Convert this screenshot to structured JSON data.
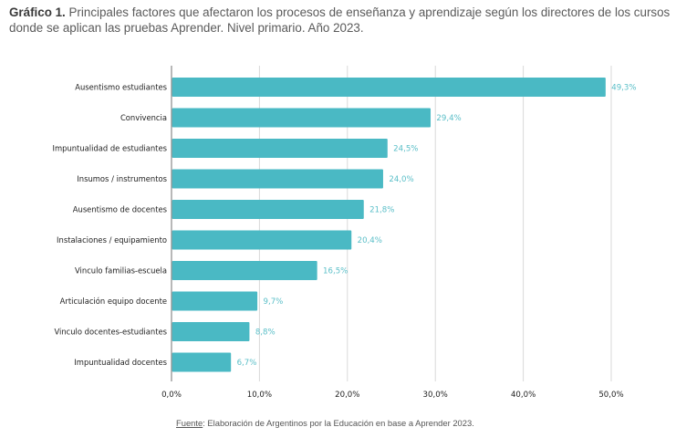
{
  "title": {
    "prefix": "Gráfico 1.",
    "text": " Principales factores que afectaron los procesos de enseñanza y aprendizaje  según los directores de los cursos donde se aplican las pruebas Aprender. Nivel primario. Año 2023."
  },
  "source": {
    "label": "Fuente",
    "text": ": Elaboración de Argentinos por la Educación en base a Aprender 2023."
  },
  "colors": {
    "bar": "#4ab9c4",
    "value_label": "#5bbfc8",
    "grid": "#d9d9d9",
    "axis": "#888888"
  },
  "chart_data": {
    "type": "bar",
    "orientation": "horizontal",
    "title": "Principales factores que afectaron los procesos de enseñanza y aprendizaje  según los directores de los cursos donde se aplican las pruebas Aprender. Nivel primario. Año 2023.",
    "xlabel": "",
    "ylabel": "",
    "categories": [
      "Ausentismo estudiantes",
      "Convivencia",
      "Impuntualidad de estudiantes",
      "Insumos / instrumentos",
      "Ausentismo de docentes",
      "Instalaciones / equipamiento",
      "Vinculo familias-escuela",
      "Articulación equipo docente",
      "Vinculo docentes-estudiantes",
      "Impuntualidad docentes"
    ],
    "values": [
      49.3,
      29.4,
      24.5,
      24.0,
      21.8,
      20.4,
      16.5,
      9.7,
      8.8,
      6.7
    ],
    "value_labels": [
      "49,3%",
      "29,4%",
      "24,5%",
      "24,0%",
      "21,8%",
      "20,4%",
      "16,5%",
      "9,7%",
      "8,8%",
      "6,7%"
    ],
    "xlim": [
      0,
      50
    ],
    "ticks": [
      0,
      10,
      20,
      30,
      40,
      50
    ],
    "tick_labels": [
      "0,0%",
      "10,0%",
      "20,0%",
      "30,0%",
      "40,0%",
      "50,0%"
    ],
    "grid": true,
    "legend": "none"
  }
}
